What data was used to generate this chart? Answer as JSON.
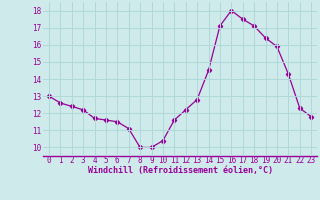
{
  "x": [
    0,
    1,
    2,
    3,
    4,
    5,
    6,
    7,
    8,
    9,
    10,
    11,
    12,
    13,
    14,
    15,
    16,
    17,
    18,
    19,
    20,
    21,
    22,
    23
  ],
  "y": [
    13.0,
    12.6,
    12.4,
    12.2,
    11.7,
    11.6,
    11.5,
    11.1,
    10.0,
    10.0,
    10.4,
    11.6,
    12.2,
    12.8,
    14.5,
    17.1,
    18.0,
    17.5,
    17.1,
    16.4,
    15.9,
    14.3,
    12.3,
    11.8
  ],
  "line_color": "#990099",
  "marker": "D",
  "marker_size": 2.2,
  "xlabel": "Windchill (Refroidissement éolien,°C)",
  "xlabel_color": "#990099",
  "ylabel_ticks": [
    10,
    11,
    12,
    13,
    14,
    15,
    16,
    17,
    18
  ],
  "ylim": [
    9.5,
    18.5
  ],
  "xlim": [
    -0.5,
    23.5
  ],
  "bg_color": "#ceeaea",
  "grid_color": "#b0d8d8",
  "tick_color": "#990099",
  "border_color": "#990099",
  "tick_fontsize": 5.5,
  "xlabel_fontsize": 6.0
}
